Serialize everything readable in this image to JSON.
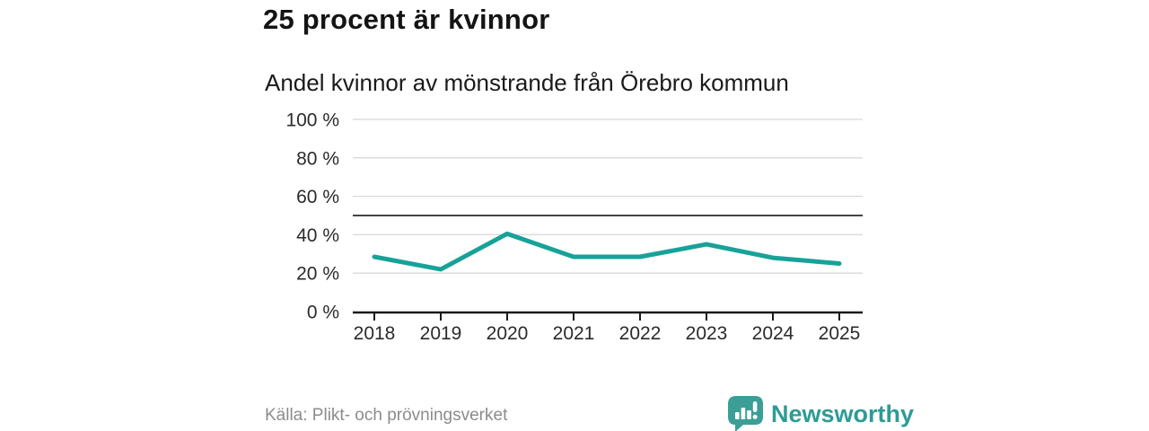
{
  "header": {
    "title": "25 procent är kvinnor",
    "subtitle": "Andel kvinnor av mönstrande från Örebro kommun"
  },
  "footer": {
    "source": "Källa: Plikt- och prövningsverket",
    "brand_name": "Newsworthy",
    "brand_color": "#2d9c95"
  },
  "chart_data": {
    "type": "line",
    "title": "25 procent är kvinnor",
    "subtitle": "Andel kvinnor av mönstrande från Örebro kommun",
    "categories": [
      "2018",
      "2019",
      "2020",
      "2021",
      "2022",
      "2023",
      "2024",
      "2025"
    ],
    "values": [
      28.5,
      22,
      40.5,
      28.5,
      28.5,
      35,
      28,
      25
    ],
    "series_name": "Andel kvinnor av mönstrande",
    "xlabel": "",
    "ylabel": "",
    "ylim": [
      0,
      100
    ],
    "yticks": [
      0,
      20,
      40,
      60,
      80,
      100
    ],
    "ytick_suffix": " %",
    "reference_line": 50,
    "grid": "horizontal",
    "legend": "none",
    "colors": {
      "line": "#17a299",
      "gridline": "#d8d8d8",
      "reference_line": "#454545",
      "axis": "#1a1a1a",
      "tick_label": "#2b2b2b"
    },
    "line_width": 5
  }
}
